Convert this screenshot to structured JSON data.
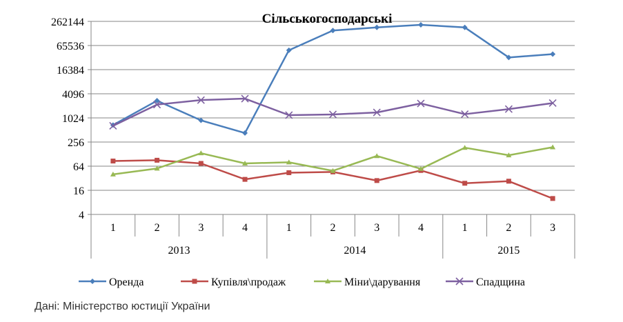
{
  "chart_data": {
    "type": "line",
    "title": "Сільськогосподарські",
    "xlabel": "",
    "ylabel": "",
    "y_scale": "log2",
    "ylim": [
      4,
      262144
    ],
    "y_ticks": [
      4,
      16,
      64,
      256,
      1024,
      4096,
      16384,
      65536,
      262144
    ],
    "y_tick_labels": [
      "4",
      "16",
      "64",
      "256",
      "1024",
      "4096",
      "16384",
      "65536",
      "262144"
    ],
    "grid": true,
    "legend_position": "bottom",
    "categories": [
      "1",
      "2",
      "3",
      "4",
      "1",
      "2",
      "3",
      "4",
      "1",
      "2",
      "3"
    ],
    "category_groups": [
      {
        "label": "2013",
        "count": 4
      },
      {
        "label": "2014",
        "count": 4
      },
      {
        "label": "2015",
        "count": 3
      }
    ],
    "series": [
      {
        "name": "Оренда",
        "color": "#4a7ebb",
        "marker": "diamond",
        "values": [
          680,
          2750,
          890,
          430,
          50000,
          155000,
          185000,
          215000,
          185000,
          33000,
          40000
        ]
      },
      {
        "name": "Купівля\\продаж",
        "color": "#be4b48",
        "marker": "square",
        "values": [
          86,
          90,
          75,
          30,
          44,
          46,
          28,
          50,
          24,
          27,
          10
        ]
      },
      {
        "name": "Міни\\дарування",
        "color": "#98b954",
        "marker": "triangle",
        "values": [
          40,
          56,
          135,
          75,
          80,
          49,
          115,
          55,
          185,
          120,
          190
        ]
      },
      {
        "name": "Спадщина",
        "color": "#7d60a0",
        "marker": "x",
        "values": [
          650,
          2200,
          2850,
          3100,
          1200,
          1250,
          1400,
          2350,
          1270,
          1700,
          2400
        ]
      }
    ]
  },
  "source_note": "Дані: Міністерство юстиції України"
}
